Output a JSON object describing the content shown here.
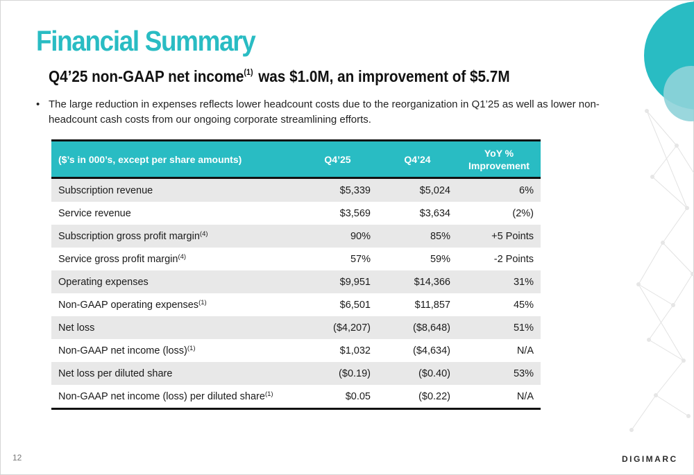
{
  "slide": {
    "title": "Financial Summary",
    "headline": {
      "before_sup": "Q4’25 non-GAAP net income",
      "sup": "(1)",
      "after_sup": " was $1.0M, an improvement of $5.7M"
    },
    "bullet": "The large reduction in expenses reflects lower headcount costs due to the reorganization in Q1’25 as well as lower non-headcount cash costs from our ongoing corporate streamlining efforts.",
    "page_number": "12",
    "logo_text": "DIGIMARC"
  },
  "table": {
    "headers": {
      "metric": "($’s in 000’s, except per share amounts)",
      "q4_25": "Q4’25",
      "q4_24": "Q4’24",
      "yoy_line1": "YoY %",
      "yoy_line2": "Improvement"
    },
    "rows": [
      {
        "label": "Subscription revenue",
        "sup": "",
        "q4_25": "$5,339",
        "q4_24": "$5,024",
        "yoy": "6%"
      },
      {
        "label": "Service revenue",
        "sup": "",
        "q4_25": "$3,569",
        "q4_24": "$3,634",
        "yoy": "(2%)"
      },
      {
        "label": "Subscription gross profit margin",
        "sup": "(4)",
        "q4_25": "90%",
        "q4_24": "85%",
        "yoy": "+5 Points"
      },
      {
        "label": "Service gross profit margin",
        "sup": "(4)",
        "q4_25": "57%",
        "q4_24": "59%",
        "yoy": "-2 Points"
      },
      {
        "label": "Operating expenses",
        "sup": "",
        "q4_25": "$9,951",
        "q4_24": "$14,366",
        "yoy": "31%"
      },
      {
        "label": "Non-GAAP operating expenses",
        "sup": "(1)",
        "q4_25": "$6,501",
        "q4_24": "$11,857",
        "yoy": "45%"
      },
      {
        "label": "Net loss",
        "sup": "",
        "q4_25": "($4,207)",
        "q4_24": "($8,648)",
        "yoy": "51%"
      },
      {
        "label": "Non-GAAP net income (loss)",
        "sup": "(1)",
        "q4_25": "$1,032",
        "q4_24": "($4,634)",
        "yoy": "N/A"
      },
      {
        "label": "Net loss per diluted share",
        "sup": "",
        "q4_25": "($0.19)",
        "q4_24": "($0.40)",
        "yoy": "53%"
      },
      {
        "label": "Non-GAAP net income (loss) per diluted share",
        "sup": "(1)",
        "q4_25": "$0.05",
        "q4_24": "($0.22)",
        "yoy": "N/A"
      }
    ]
  },
  "colors": {
    "accent": "#29bcc3",
    "accent_light": "#8fd3d9",
    "row_shade": "#e8e8e8"
  }
}
